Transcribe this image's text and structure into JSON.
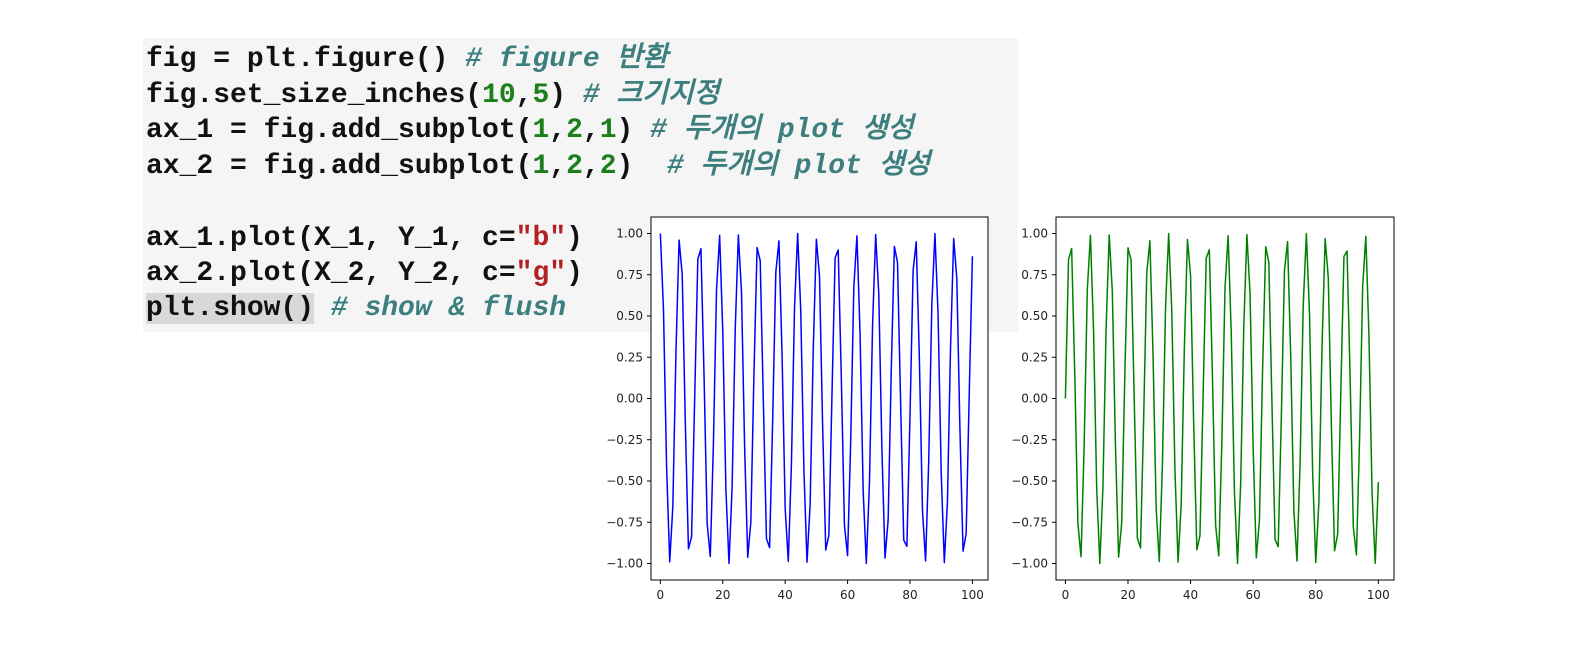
{
  "code": {
    "lines": [
      [
        {
          "t": "fig = plt.figure() ",
          "k": "plain"
        },
        {
          "t": "# figure 반환",
          "k": "comment"
        }
      ],
      [
        {
          "t": "fig.set_size_inches(",
          "k": "plain"
        },
        {
          "t": "10",
          "k": "number"
        },
        {
          "t": ",",
          "k": "plain"
        },
        {
          "t": "5",
          "k": "number"
        },
        {
          "t": ") ",
          "k": "plain"
        },
        {
          "t": "# 크기지정",
          "k": "comment"
        }
      ],
      [
        {
          "t": "ax_1 = fig.add_subplot(",
          "k": "plain"
        },
        {
          "t": "1",
          "k": "number"
        },
        {
          "t": ",",
          "k": "plain"
        },
        {
          "t": "2",
          "k": "number"
        },
        {
          "t": ",",
          "k": "plain"
        },
        {
          "t": "1",
          "k": "number"
        },
        {
          "t": ") ",
          "k": "plain"
        },
        {
          "t": "# 두개의 plot 생성",
          "k": "comment"
        }
      ],
      [
        {
          "t": "ax_2 = fig.add_subplot(",
          "k": "plain"
        },
        {
          "t": "1",
          "k": "number"
        },
        {
          "t": ",",
          "k": "plain"
        },
        {
          "t": "2",
          "k": "number"
        },
        {
          "t": ",",
          "k": "plain"
        },
        {
          "t": "2",
          "k": "number"
        },
        {
          "t": ")  ",
          "k": "plain"
        },
        {
          "t": "# 두개의 plot 생성",
          "k": "comment"
        }
      ],
      [],
      [
        {
          "t": "ax_1.plot(X_1, Y_1, c=",
          "k": "plain"
        },
        {
          "t": "\"b\"",
          "k": "string"
        },
        {
          "t": ")",
          "k": "plain"
        }
      ],
      [
        {
          "t": "ax_2.plot(X_2, Y_2, c=",
          "k": "plain"
        },
        {
          "t": "\"g\"",
          "k": "string"
        },
        {
          "t": ")",
          "k": "plain"
        }
      ],
      [
        {
          "t": "plt.show()",
          "k": "selected"
        },
        {
          "t": " ",
          "k": "plain"
        },
        {
          "t": "# show & flush",
          "k": "comment"
        }
      ]
    ]
  },
  "chart_data": [
    {
      "type": "line",
      "color": "#0000ff",
      "series": [
        {
          "function": "cos",
          "x_start": 0,
          "x_end": 100,
          "points": 100,
          "period": 6.2832
        }
      ],
      "xlim": [
        -3,
        105
      ],
      "ylim": [
        -1.1,
        1.1
      ],
      "xticks": [
        "0",
        "20",
        "40",
        "60",
        "80",
        "100"
      ],
      "yticks": [
        "1.00",
        "0.75",
        "0.50",
        "0.25",
        "0.00",
        "−0.25",
        "−0.50",
        "−0.75",
        "−1.00"
      ]
    },
    {
      "type": "line",
      "color": "#008000",
      "series": [
        {
          "function": "sin",
          "x_start": 0,
          "x_end": 100,
          "points": 100,
          "period": 6.2832
        }
      ],
      "xlim": [
        -3,
        105
      ],
      "ylim": [
        -1.1,
        1.1
      ],
      "xticks": [
        "0",
        "20",
        "40",
        "60",
        "80",
        "100"
      ],
      "yticks": [
        "1.00",
        "0.75",
        "0.50",
        "0.25",
        "0.00",
        "−0.25",
        "−0.50",
        "−0.75",
        "−1.00"
      ]
    }
  ]
}
